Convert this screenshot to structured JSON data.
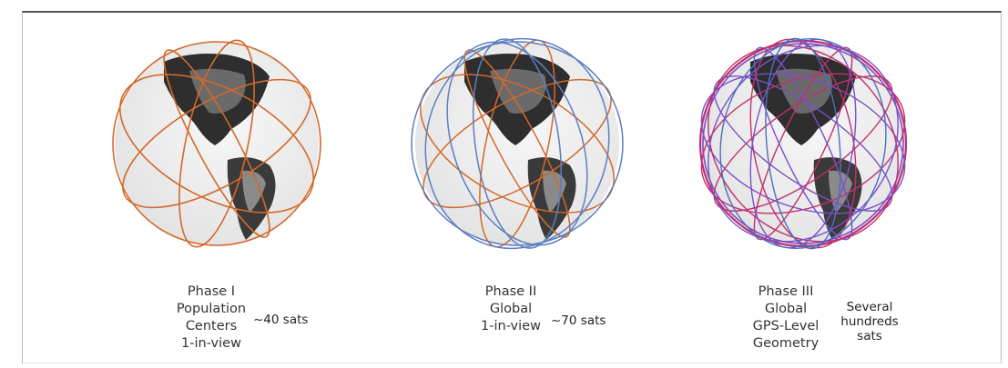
{
  "phases": [
    {
      "caption": [
        "Phase I",
        "Population",
        "Centers",
        "1-in-view"
      ],
      "count": [
        "~40 sats"
      ],
      "orbit_colors": [
        "#d2692a"
      ]
    },
    {
      "caption": [
        "Phase II",
        "Global",
        "1-in-view"
      ],
      "count": [
        "~70 sats"
      ],
      "orbit_colors": [
        "#d2692a",
        "#5b7fc1"
      ]
    },
    {
      "caption": [
        "Phase III",
        "Global",
        "GPS-Level",
        "Geometry"
      ],
      "count": [
        "Several",
        "hundreds",
        "sats"
      ],
      "orbit_colors": [
        "#c0306e",
        "#7a50c8",
        "#4a6fc0"
      ]
    }
  ]
}
